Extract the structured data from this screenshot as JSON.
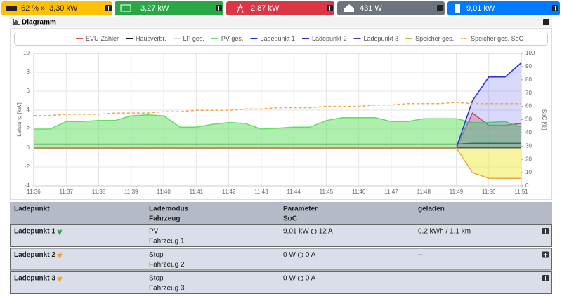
{
  "status_bar": {
    "battery_soc": "62 %",
    "battery_power": "3,30 kW",
    "pv_power": "3,27 kW",
    "grid_power": "2,87 kW",
    "house_power": "431 W",
    "charge_power": "9,01 kW"
  },
  "diagram": {
    "title": "Diagramm"
  },
  "chart_data": {
    "type": "line",
    "x": [
      36,
      36.5,
      37,
      37.5,
      38,
      38.5,
      39,
      39.5,
      40,
      40.5,
      41,
      41.5,
      42,
      42.5,
      43,
      43.5,
      44,
      44.5,
      45,
      45.5,
      46,
      46.5,
      47,
      47.5,
      48,
      48.5,
      49,
      49.5,
      50,
      50.5,
      51
    ],
    "xlim": [
      36,
      51
    ],
    "xticks": [
      {
        "value": 36,
        "label": "11:36"
      },
      {
        "value": 37,
        "label": "11:37"
      },
      {
        "value": 38,
        "label": "11:38"
      },
      {
        "value": 39,
        "label": "11:39"
      },
      {
        "value": 40,
        "label": "11:40"
      },
      {
        "value": 41,
        "label": "11:41"
      },
      {
        "value": 42,
        "label": "11:42"
      },
      {
        "value": 43,
        "label": "11:43"
      },
      {
        "value": 44,
        "label": "11:44"
      },
      {
        "value": 45,
        "label": "11:45"
      },
      {
        "value": 46,
        "label": "11:46"
      },
      {
        "value": 47,
        "label": "11:47"
      },
      {
        "value": 48,
        "label": "11:48"
      },
      {
        "value": 49,
        "label": "11:49"
      },
      {
        "value": 50,
        "label": "11:50"
      },
      {
        "value": 51,
        "label": "11:51"
      }
    ],
    "ylim": [
      -4,
      10
    ],
    "yticks": [
      -4,
      -2,
      0,
      2,
      4,
      6,
      8,
      10
    ],
    "y_label": "Leistung [kW]",
    "y2lim": [
      0,
      100
    ],
    "y2ticks": [
      0,
      10,
      20,
      30,
      40,
      50,
      60,
      70,
      80,
      90,
      100
    ],
    "y2_label": "SoC [%]",
    "grid": true,
    "series": [
      {
        "name": "EVU-Zähler",
        "color": "#e8484f",
        "fill": true,
        "fill_color": "rgba(232,72,79,0.3)",
        "values": [
          0,
          -0.1,
          0,
          -0.1,
          0,
          0,
          -0.1,
          0,
          0,
          0,
          -0.1,
          0,
          0,
          0,
          0,
          0,
          -0.1,
          -0.1,
          0,
          0,
          0,
          -0.1,
          0,
          0,
          0,
          0,
          0,
          3.7,
          2.4,
          2.4,
          2.6
        ]
      },
      {
        "name": "Hausverbr.",
        "color": "#111111",
        "fill": false,
        "values": [
          0.4,
          0.4,
          0.4,
          0.4,
          0.4,
          0.4,
          0.4,
          0.4,
          0.4,
          0.4,
          0.4,
          0.4,
          0.4,
          0.4,
          0.4,
          0.4,
          0.4,
          0.4,
          0.4,
          0.4,
          0.4,
          0.4,
          0.4,
          0.4,
          0.4,
          0.4,
          0.4,
          0.5,
          0.5,
          0.5,
          0.5
        ]
      },
      {
        "name": "LP ges.",
        "color": "#dddddd",
        "fill": false,
        "values": [
          0,
          0,
          0,
          0,
          0,
          0,
          0,
          0,
          0,
          0,
          0,
          0,
          0,
          0,
          0,
          0,
          0,
          0,
          0,
          0,
          0,
          0,
          0,
          0,
          0,
          0,
          0,
          5.0,
          7.5,
          7.5,
          9.0
        ]
      },
      {
        "name": "PV ges.",
        "color": "#5de05d",
        "fill": true,
        "fill_color": "rgba(93,224,93,0.5)",
        "values": [
          2.0,
          2.0,
          2.8,
          2.8,
          2.9,
          2.9,
          3.4,
          3.5,
          3.4,
          2.2,
          2.2,
          2.5,
          2.7,
          2.6,
          2.0,
          2.1,
          2.2,
          2.2,
          2.9,
          3.2,
          3.2,
          3.2,
          2.8,
          2.8,
          3.1,
          3.1,
          3.1,
          2.7,
          2.7,
          2.8,
          2.2
        ]
      },
      {
        "name": "Ladepunkt 1",
        "color": "#2233dd",
        "fill": true,
        "fill_color": "rgba(60,60,230,0.2)",
        "values": [
          0,
          0,
          0,
          0,
          0,
          0,
          0,
          0,
          0,
          0,
          0,
          0,
          0,
          0,
          0,
          0,
          0,
          0,
          0,
          0,
          0,
          0,
          0,
          0,
          0,
          0,
          0,
          5.0,
          7.5,
          7.5,
          9.0
        ]
      },
      {
        "name": "Ladepunkt 2",
        "color": "#2a2ac8",
        "fill": false,
        "values": [
          0,
          0,
          0,
          0,
          0,
          0,
          0,
          0,
          0,
          0,
          0,
          0,
          0,
          0,
          0,
          0,
          0,
          0,
          0,
          0,
          0,
          0,
          0,
          0,
          0,
          0,
          0,
          0,
          0,
          0,
          0
        ]
      },
      {
        "name": "Ladepunkt 3",
        "color": "#3b3bb0",
        "fill": false,
        "values": [
          0,
          0,
          0,
          0,
          0,
          0,
          0,
          0,
          0,
          0,
          0,
          0,
          0,
          0,
          0,
          0,
          0,
          0,
          0,
          0,
          0,
          0,
          0,
          0,
          0,
          0,
          0,
          0,
          0,
          0,
          0
        ]
      },
      {
        "name": "Speicher ges.",
        "color": "#f0a64a",
        "fill": true,
        "fill_color": "rgba(240,235,80,0.55)",
        "values": [
          0,
          0,
          0,
          0,
          0,
          0,
          0,
          0,
          0,
          0,
          0,
          0,
          0,
          0,
          0,
          0,
          0,
          0,
          0,
          0,
          0,
          0,
          0,
          0,
          0,
          0,
          0,
          -2.6,
          -3.2,
          -3.2,
          -3.2
        ]
      },
      {
        "name": "Speicher ges. SoC",
        "color": "#f0a64a",
        "fill": false,
        "dashed": true,
        "axis": "y2",
        "values": [
          53,
          53,
          54,
          54,
          54,
          55,
          55,
          55,
          56,
          56,
          57,
          57,
          57,
          58,
          58,
          59,
          59,
          59,
          60,
          60,
          60,
          61,
          61,
          62,
          62,
          62,
          63,
          62,
          62,
          62,
          62
        ]
      }
    ]
  },
  "table": {
    "headers": {
      "col1": "Ladepunkt",
      "col2a": "Lademodus",
      "col2b": "Fahrzeug",
      "col3a": "Parameter",
      "col3b": "SoC",
      "col4": "geladen"
    },
    "rows": [
      {
        "name": "Ladepunkt 1",
        "mode": "PV",
        "vehicle": "Fahrzeug 1",
        "power": "9,01 kW",
        "current": "12 A",
        "charged": "0,2 kWh / 1,1 km"
      },
      {
        "name": "Ladepunkt 2",
        "mode": "Stop",
        "vehicle": "Fahrzeug 2",
        "power": "0 W",
        "current": "0 A",
        "charged": "--"
      },
      {
        "name": "Ladepunkt 3",
        "mode": "Stop",
        "vehicle": "Fahrzeug 3",
        "power": "0 W",
        "current": "0 A",
        "charged": "--"
      }
    ]
  }
}
